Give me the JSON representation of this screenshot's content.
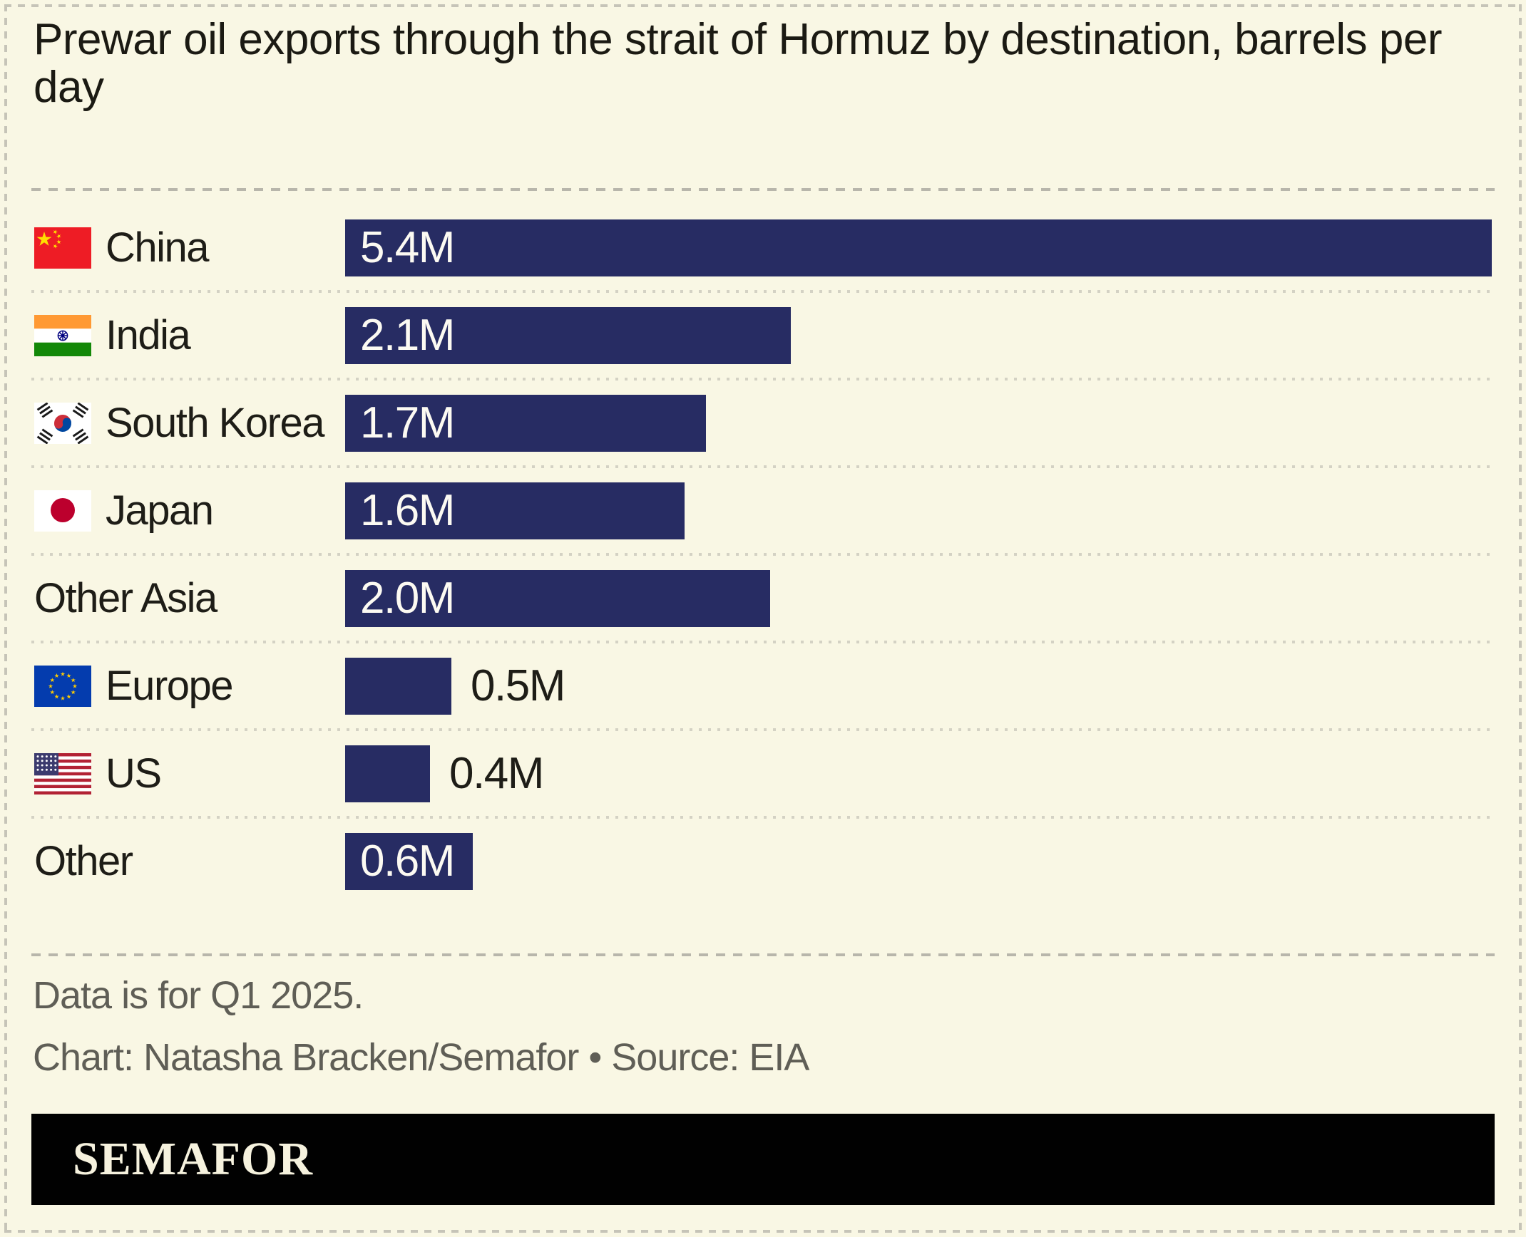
{
  "title": "Prewar oil exports through the strait of Hormuz by destination, barrels per day",
  "chart_data": {
    "type": "bar",
    "orientation": "horizontal",
    "title": "Prewar oil exports through the strait of Hormuz by destination, barrels per day",
    "unit": "million barrels per day",
    "categories": [
      "China",
      "India",
      "South Korea",
      "Japan",
      "Other Asia",
      "Europe",
      "US",
      "Other"
    ],
    "values": [
      5.4,
      2.1,
      1.7,
      1.6,
      2.0,
      0.5,
      0.4,
      0.6
    ],
    "labels": [
      "5.4M",
      "2.1M",
      "1.7M",
      "1.6M",
      "2.0M",
      "0.5M",
      "0.4M",
      "0.6M"
    ],
    "flags": [
      "china",
      "india",
      "south-korea",
      "japan",
      null,
      "europe",
      "us",
      null
    ],
    "xlim": [
      0,
      5.4
    ],
    "grid": false,
    "legend": false,
    "bar_color": "#272C63"
  },
  "footnote": "Data is for Q1 2025.",
  "credit": "Chart: Natasha Bracken/Semafor • Source: EIA",
  "logo_text": "SEMAFOR",
  "colors": {
    "background": "#F9F7E4",
    "bar": "#272C63",
    "title_text": "#1B1A13",
    "category_text": "#1E1D17",
    "value_inside_text": "#FCFAF2",
    "value_outside_text": "#1E1D17",
    "footer_text": "#5F5E56",
    "separator_dash": "#B8B6AB",
    "separator_dot": "#D4D2C4",
    "border_dash": "#C6C4B8",
    "logo_background": "#010101",
    "logo_text": "#F6F2DE"
  }
}
